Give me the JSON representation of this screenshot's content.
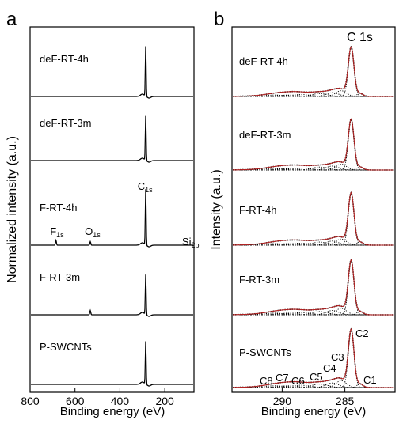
{
  "chart_data": [
    {
      "type": "line",
      "panel_label": "a",
      "xlabel": "Binding energy (eV)",
      "ylabel": "Normalized intensity (a.u.)",
      "xlim": [
        800,
        70
      ],
      "x_ticks": [
        800,
        600,
        400,
        200
      ],
      "series": [
        {
          "name": "deF-RT-4h",
          "peaks": [
            {
              "x": 285,
              "height": 0.7
            }
          ]
        },
        {
          "name": "deF-RT-3m",
          "peaks": [
            {
              "x": 285,
              "height": 0.62
            }
          ]
        },
        {
          "name": "F-RT-4h",
          "peaks": [
            {
              "x": 685,
              "height": 0.07
            },
            {
              "x": 532,
              "height": 0.05
            },
            {
              "x": 285,
              "height": 0.78
            },
            {
              "x": 100,
              "height": 0.0
            }
          ]
        },
        {
          "name": "F-RT-3m",
          "peaks": [
            {
              "x": 532,
              "height": 0.06
            },
            {
              "x": 285,
              "height": 0.56
            }
          ]
        },
        {
          "name": "P-SWCNTs",
          "peaks": [
            {
              "x": 285,
              "height": 0.6
            }
          ]
        }
      ],
      "annotations": [
        {
          "text": "C",
          "sub": "1s",
          "x": 300
        },
        {
          "text": "F",
          "sub": "1s",
          "x": 690
        },
        {
          "text": "O",
          "sub": "1s",
          "x": 535
        },
        {
          "text": "Si",
          "sub": "2p",
          "x": 102
        }
      ]
    },
    {
      "type": "line",
      "panel_label": "b",
      "title": "C 1s",
      "xlabel": "Binding energy (eV)",
      "ylabel": "Intensity (a.u.)",
      "xlim": [
        294,
        281
      ],
      "x_ticks": [
        290,
        285
      ],
      "series": [
        {
          "name": "deF-RT-4h",
          "peak_x": 284.5,
          "peak_height": 0.68
        },
        {
          "name": "deF-RT-3m",
          "peak_x": 284.5,
          "peak_height": 0.7
        },
        {
          "name": "F-RT-4h",
          "peak_x": 284.5,
          "peak_height": 0.72
        },
        {
          "name": "F-RT-3m",
          "peak_x": 284.5,
          "peak_height": 0.75
        },
        {
          "name": "P-SWCNTs",
          "peak_x": 284.5,
          "peak_height": 0.8
        }
      ],
      "component_labels": [
        "C1",
        "C2",
        "C3",
        "C4",
        "C5",
        "C6",
        "C7",
        "C8"
      ],
      "component_positions": [
        283.8,
        284.5,
        285.3,
        286.0,
        287.0,
        288.5,
        289.5,
        290.6
      ],
      "colors": {
        "fit": "#b22222",
        "data": "#000000"
      }
    }
  ]
}
